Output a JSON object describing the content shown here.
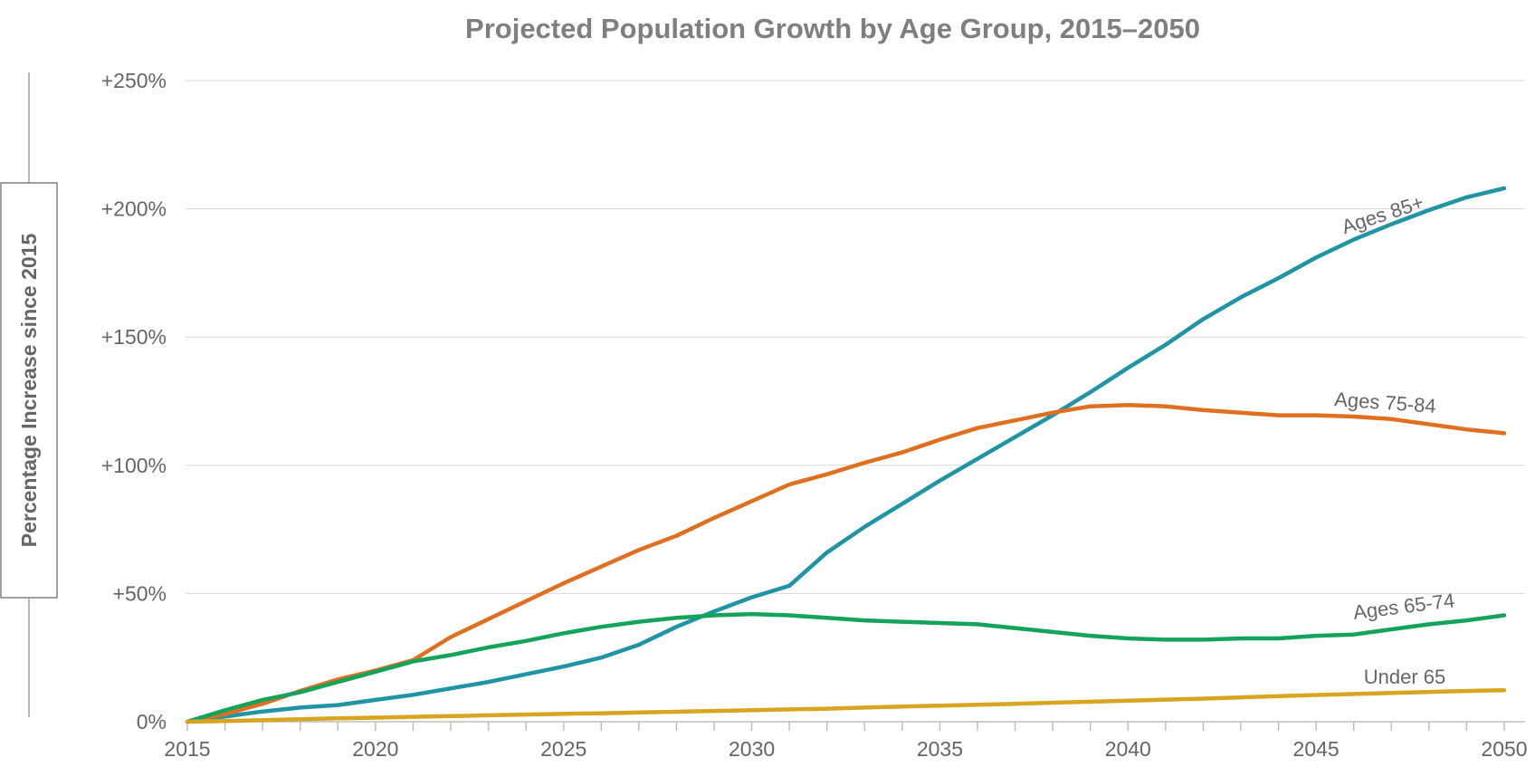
{
  "chart_data": {
    "type": "line",
    "title": "Projected Population Growth by Age Group, 2015–2050",
    "xlabel": "",
    "ylabel": "Percentage Increase since 2015",
    "xlim": [
      2015,
      2050
    ],
    "ylim": [
      0,
      250
    ],
    "grid": "horizontal",
    "legend": "inline labels",
    "x_tick_labels": [
      "2015",
      "2020",
      "2025",
      "2030",
      "2035",
      "2040",
      "2045",
      "2050"
    ],
    "y_ticks": [
      {
        "value": 0,
        "label": "0%"
      },
      {
        "value": 50,
        "label": "+50%"
      },
      {
        "value": 100,
        "label": "+100%"
      },
      {
        "value": 150,
        "label": "+150%"
      },
      {
        "value": 200,
        "label": "+200%"
      },
      {
        "value": 250,
        "label": "+250%"
      }
    ],
    "x": [
      2015,
      2016,
      2017,
      2018,
      2019,
      2020,
      2021,
      2022,
      2023,
      2024,
      2025,
      2026,
      2027,
      2028,
      2029,
      2030,
      2031,
      2032,
      2033,
      2034,
      2035,
      2036,
      2037,
      2038,
      2039,
      2040,
      2041,
      2042,
      2043,
      2044,
      2045,
      2046,
      2047,
      2048,
      2049,
      2050
    ],
    "series": [
      {
        "name": "Ages 85+",
        "color": "#1f94a5",
        "values": [
          0,
          2,
          4,
          5.5,
          6.5,
          8.5,
          10.5,
          13,
          15.5,
          18.5,
          21.5,
          25,
          30,
          37,
          43,
          48.5,
          53,
          66,
          76,
          85,
          94,
          102.5,
          111,
          119.5,
          128.5,
          138,
          147,
          157,
          165.5,
          173,
          181,
          188,
          194,
          199.5,
          204.5,
          208
        ]
      },
      {
        "name": "Ages 75-84",
        "color": "#e07020",
        "values": [
          0,
          3,
          7,
          12,
          16.5,
          20,
          24,
          33,
          40,
          47,
          54,
          60.5,
          67,
          72.5,
          79.5,
          86,
          92.5,
          96.5,
          101,
          105,
          110,
          114.5,
          117.5,
          120.5,
          123,
          123.5,
          123,
          121.5,
          120.5,
          119.5,
          119.5,
          119,
          118,
          116,
          114,
          112.5
        ]
      },
      {
        "name": "Ages 65-74",
        "color": "#14a35a",
        "values": [
          0,
          4.5,
          8.5,
          11.5,
          15.5,
          19.5,
          23.5,
          26,
          29,
          31.5,
          34.5,
          37,
          39,
          40.5,
          41.5,
          42,
          41.5,
          40.5,
          39.5,
          39,
          38.5,
          38,
          36.5,
          35,
          33.5,
          32.5,
          32,
          32,
          32.5,
          32.5,
          33.5,
          34,
          36,
          38,
          39.5,
          41.5
        ]
      },
      {
        "name": "Under 65",
        "color": "#d9a520",
        "values": [
          0,
          0.3,
          0.6,
          1,
          1.3,
          1.6,
          1.9,
          2.2,
          2.5,
          2.8,
          3.1,
          3.3,
          3.6,
          3.9,
          4.2,
          4.5,
          4.8,
          5.1,
          5.5,
          5.9,
          6.3,
          6.6,
          7,
          7.4,
          7.8,
          8.2,
          8.6,
          9,
          9.5,
          10,
          10.4,
          10.8,
          11.2,
          11.6,
          12,
          12.3
        ]
      }
    ]
  }
}
